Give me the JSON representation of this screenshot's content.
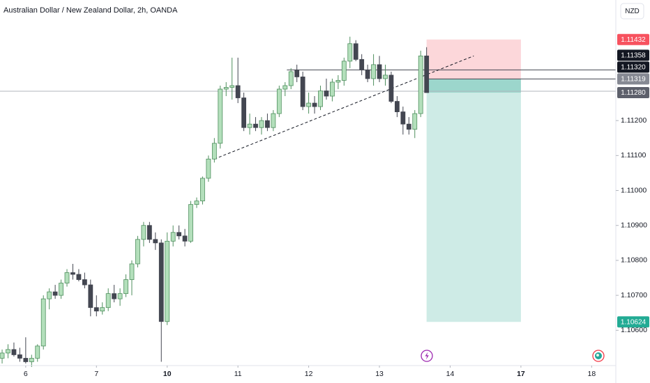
{
  "chart_data": {
    "type": "candlestick",
    "title": "Australian Dollar / New Zealand Dollar, 2h, OANDA",
    "currency": "NZD",
    "up_color": "#b3dfbb",
    "up_border": "#4f8f5e",
    "down_color": "#434651",
    "grid": false,
    "ylim": [
      1.10499,
      1.11545
    ],
    "yticks": [
      {
        "value": 1.112,
        "label": "1.11200"
      },
      {
        "value": 1.111,
        "label": "1.11100"
      },
      {
        "value": 1.11,
        "label": "1.11000"
      },
      {
        "value": 1.109,
        "label": "1.10900"
      },
      {
        "value": 1.108,
        "label": "1.10800"
      },
      {
        "value": 1.107,
        "label": "1.10700"
      },
      {
        "value": 1.106,
        "label": "1.10600"
      }
    ],
    "xlim": [
      -0.36,
      104.1
    ],
    "xticks": [
      {
        "value": 4,
        "label": "6"
      },
      {
        "value": 16,
        "label": "7"
      },
      {
        "value": 28,
        "label": "10",
        "bold": true
      },
      {
        "value": 40,
        "label": "11"
      },
      {
        "value": 52,
        "label": "12"
      },
      {
        "value": 64,
        "label": "13"
      },
      {
        "value": 76,
        "label": "14"
      },
      {
        "value": 88,
        "label": "17",
        "bold": true
      },
      {
        "value": 100,
        "label": "18"
      }
    ],
    "series": {
      "open": [
        1.1052,
        1.10535,
        1.10545,
        1.1053,
        1.1052,
        1.1051,
        1.1052,
        1.10555,
        1.1069,
        1.1071,
        1.107,
        1.10735,
        1.10765,
        1.1076,
        1.10745,
        1.1073,
        1.10665,
        1.10655,
        1.10665,
        1.10705,
        1.1069,
        1.10705,
        1.10745,
        1.1079,
        1.1086,
        1.109,
        1.1086,
        1.1085,
        1.10625,
        1.10855,
        1.1088,
        1.1087,
        1.10855,
        1.1096,
        1.1097,
        1.11035,
        1.1109,
        1.11135,
        1.1129,
        1.11295,
        1.113,
        1.11265,
        1.1118,
        1.1119,
        1.1118,
        1.112,
        1.1118,
        1.1122,
        1.1129,
        1.113,
        1.11345,
        1.11325,
        1.1124,
        1.1125,
        1.1124,
        1.11285,
        1.1127,
        1.1131,
        1.11315,
        1.1137,
        1.1142,
        1.11375,
        1.11345,
        1.1132,
        1.1136,
        1.1132,
        1.1133,
        1.11255,
        1.11225,
        1.1119,
        1.11175,
        1.1122,
        1.11385
      ],
      "high": [
        1.10545,
        1.1056,
        1.10565,
        1.1055,
        1.1058,
        1.1053,
        1.1056,
        1.107,
        1.1072,
        1.1073,
        1.10745,
        1.10775,
        1.1079,
        1.10775,
        1.10765,
        1.10745,
        1.107,
        1.1068,
        1.1072,
        1.1073,
        1.1072,
        1.1076,
        1.108,
        1.1087,
        1.1091,
        1.1091,
        1.1088,
        1.1086,
        1.1088,
        1.109,
        1.109,
        1.1089,
        1.1097,
        1.1098,
        1.1104,
        1.111,
        1.1115,
        1.113,
        1.1131,
        1.1138,
        1.1138,
        1.1128,
        1.1122,
        1.1121,
        1.1121,
        1.1122,
        1.1123,
        1.113,
        1.1131,
        1.1135,
        1.1136,
        1.1134,
        1.1128,
        1.1127,
        1.113,
        1.1132,
        1.1132,
        1.1133,
        1.1138,
        1.1144,
        1.1143,
        1.1139,
        1.1136,
        1.1139,
        1.11385,
        1.1136,
        1.1134,
        1.1127,
        1.1124,
        1.1121,
        1.1123,
        1.114,
        1.1141
      ],
      "low": [
        1.10505,
        1.1052,
        1.10525,
        1.1051,
        1.10505,
        1.10495,
        1.1051,
        1.10545,
        1.1066,
        1.1069,
        1.1069,
        1.10725,
        1.10745,
        1.1074,
        1.1072,
        1.1064,
        1.1064,
        1.10645,
        1.10655,
        1.1068,
        1.1067,
        1.10695,
        1.107,
        1.1078,
        1.1084,
        1.1085,
        1.1083,
        1.1051,
        1.10615,
        1.1084,
        1.1086,
        1.1084,
        1.1085,
        1.1095,
        1.1096,
        1.11025,
        1.1108,
        1.1112,
        1.1127,
        1.1126,
        1.1125,
        1.1117,
        1.1116,
        1.1117,
        1.1116,
        1.1117,
        1.1117,
        1.1121,
        1.1127,
        1.1129,
        1.1131,
        1.1123,
        1.1122,
        1.1122,
        1.1123,
        1.1126,
        1.11255,
        1.1129,
        1.113,
        1.1135,
        1.1137,
        1.1133,
        1.1131,
        1.113,
        1.1131,
        1.113,
        1.1125,
        1.1121,
        1.1116,
        1.1116,
        1.1115,
        1.1121,
        1.1128
      ],
      "close": [
        1.10535,
        1.10545,
        1.1053,
        1.1052,
        1.1051,
        1.1052,
        1.10555,
        1.1069,
        1.1071,
        1.107,
        1.10735,
        1.10765,
        1.1076,
        1.10745,
        1.1073,
        1.10665,
        1.10655,
        1.10665,
        1.10705,
        1.1069,
        1.10705,
        1.10745,
        1.1079,
        1.1086,
        1.109,
        1.1086,
        1.1085,
        1.10625,
        1.10855,
        1.1088,
        1.1087,
        1.10855,
        1.1096,
        1.1097,
        1.11035,
        1.1109,
        1.11135,
        1.1129,
        1.11295,
        1.113,
        1.11265,
        1.1118,
        1.1119,
        1.1118,
        1.112,
        1.1118,
        1.1122,
        1.1129,
        1.113,
        1.1134,
        1.11325,
        1.1124,
        1.1125,
        1.1124,
        1.11285,
        1.1127,
        1.1131,
        1.11315,
        1.1137,
        1.1142,
        1.11375,
        1.11345,
        1.1132,
        1.1136,
        1.1132,
        1.1133,
        1.11255,
        1.11225,
        1.1119,
        1.11175,
        1.1122,
        1.11385,
        1.1128
      ]
    },
    "levels": [
      1.11345,
      1.11319,
      1.11284
    ],
    "trendline": [
      1.1109,
      1.11385
    ],
    "position": {
      "stop": 1.11432,
      "entry": 1.11319,
      "target": 1.10624
    },
    "price_tags": [
      {
        "value": 1.11432,
        "label": "1.11432",
        "color": "#f7525f"
      },
      {
        "value": 1.11358,
        "label": "1.11358",
        "color": "#131722"
      },
      {
        "value": 1.1132,
        "label": "1.11320",
        "color": "#131722"
      },
      {
        "value": 1.11319,
        "label": "1.11319",
        "color": "#868993"
      },
      {
        "value": 1.1128,
        "label": "1.11280",
        "color": "#5d606b"
      },
      {
        "value": 1.10624,
        "label": "1.10624",
        "color": "#22ab94"
      }
    ]
  }
}
